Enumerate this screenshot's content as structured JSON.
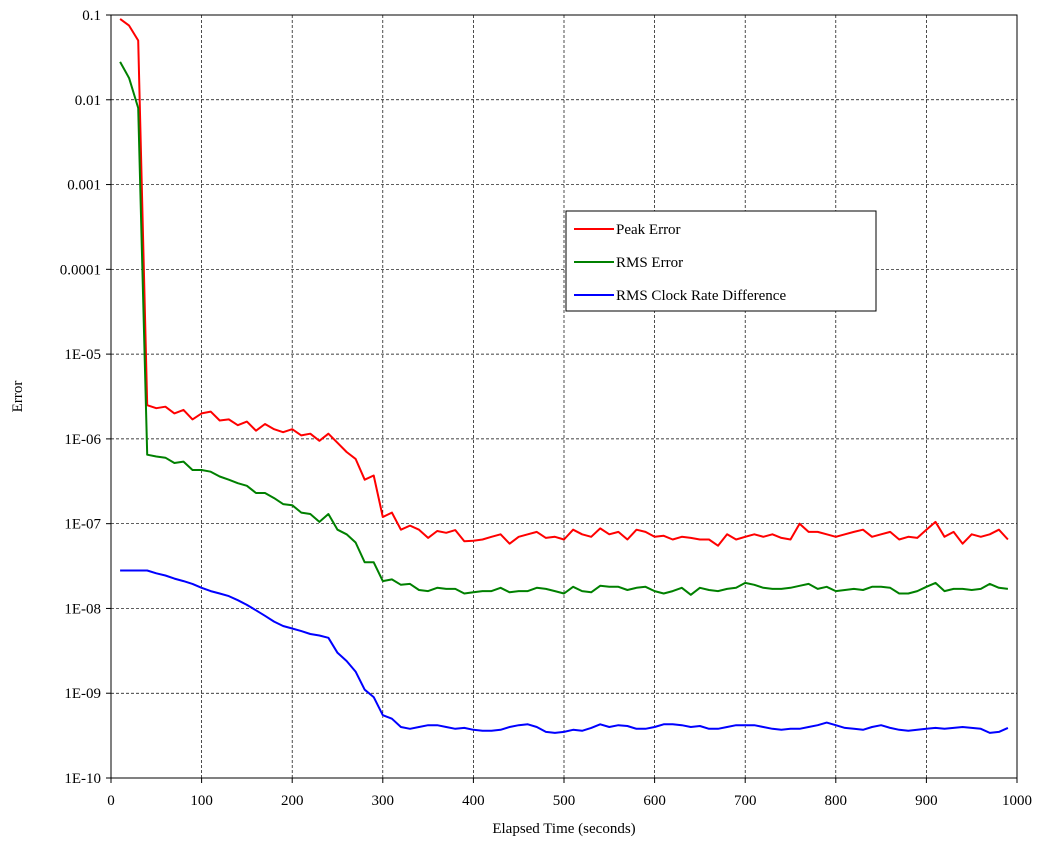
{
  "chart_data": {
    "type": "line",
    "xlabel": "Elapsed Time (seconds)",
    "ylabel": "Error",
    "y_scale": "log",
    "xlim": [
      0,
      1000
    ],
    "ylim": [
      1e-10,
      0.1
    ],
    "x_ticks": [
      "0",
      "100",
      "200",
      "300",
      "400",
      "500",
      "600",
      "700",
      "800",
      "900",
      "1000"
    ],
    "y_ticks": [
      "0.1",
      "0.01",
      "0.001",
      "0.0001",
      "1E-05",
      "1E-06",
      "1E-07",
      "1E-08",
      "1E-09",
      "1E-10"
    ],
    "grid": true,
    "legend_position": "right-upper",
    "x": [
      10,
      20,
      30,
      40,
      50,
      60,
      70,
      80,
      90,
      100,
      110,
      120,
      130,
      140,
      150,
      160,
      170,
      180,
      190,
      200,
      210,
      220,
      230,
      240,
      250,
      260,
      270,
      280,
      290,
      300,
      310,
      320,
      330,
      340,
      350,
      360,
      370,
      380,
      390,
      400,
      410,
      420,
      430,
      440,
      450,
      460,
      470,
      480,
      490,
      500,
      510,
      520,
      530,
      540,
      550,
      560,
      570,
      580,
      590,
      600,
      610,
      620,
      630,
      640,
      650,
      660,
      670,
      680,
      690,
      700,
      710,
      720,
      730,
      740,
      750,
      760,
      770,
      780,
      790,
      800,
      810,
      820,
      830,
      840,
      850,
      860,
      870,
      880,
      890,
      900,
      910,
      920,
      930,
      940,
      950,
      960,
      970,
      980,
      990
    ],
    "series": [
      {
        "name": "Peak Error",
        "color": "#ff0000",
        "values": [
          0.09,
          0.075,
          0.05,
          2.5e-06,
          2.3e-06,
          2.4e-06,
          2e-06,
          2.2e-06,
          1.7e-06,
          2e-06,
          2.1e-06,
          1.65e-06,
          1.7e-06,
          1.45e-06,
          1.6e-06,
          1.25e-06,
          1.5e-06,
          1.3e-06,
          1.2e-06,
          1.3e-06,
          1.1e-06,
          1.15e-06,
          9.5e-07,
          1.15e-06,
          9e-07,
          7e-07,
          5.8e-07,
          3.3e-07,
          3.7e-07,
          1.2e-07,
          1.35e-07,
          8.5e-08,
          9.5e-08,
          8.5e-08,
          6.8e-08,
          8.2e-08,
          7.8e-08,
          8.4e-08,
          6.2e-08,
          6.3e-08,
          6.5e-08,
          7e-08,
          7.5e-08,
          5.8e-08,
          7e-08,
          7.5e-08,
          8e-08,
          6.8e-08,
          7e-08,
          6.5e-08,
          8.5e-08,
          7.5e-08,
          7e-08,
          8.8e-08,
          7.5e-08,
          8e-08,
          6.5e-08,
          8.5e-08,
          8e-08,
          7e-08,
          7.2e-08,
          6.5e-08,
          7e-08,
          6.8e-08,
          6.5e-08,
          6.5e-08,
          5.5e-08,
          7.5e-08,
          6.5e-08,
          7e-08,
          7.5e-08,
          7e-08,
          7.5e-08,
          6.8e-08,
          6.5e-08,
          1e-07,
          8e-08,
          8e-08,
          7.5e-08,
          7e-08,
          7.5e-08,
          8e-08,
          8.5e-08,
          7e-08,
          7.5e-08,
          8e-08,
          6.5e-08,
          7e-08,
          6.8e-08,
          8.5e-08,
          1.05e-07,
          7e-08,
          8e-08,
          5.8e-08,
          7.5e-08,
          7e-08,
          7.5e-08,
          8.5e-08,
          6.5e-08
        ]
      },
      {
        "name": "RMS Error",
        "color": "#008000",
        "values": [
          0.028,
          0.018,
          0.008,
          6.5e-07,
          6.2e-07,
          6e-07,
          5.2e-07,
          5.4e-07,
          4.3e-07,
          4.3e-07,
          4.1e-07,
          3.6e-07,
          3.3e-07,
          3e-07,
          2.8e-07,
          2.3e-07,
          2.3e-07,
          2e-07,
          1.7e-07,
          1.65e-07,
          1.35e-07,
          1.3e-07,
          1.05e-07,
          1.3e-07,
          8.5e-08,
          7.5e-08,
          6e-08,
          3.5e-08,
          3.5e-08,
          2.1e-08,
          2.2e-08,
          1.9e-08,
          1.95e-08,
          1.65e-08,
          1.6e-08,
          1.75e-08,
          1.7e-08,
          1.7e-08,
          1.5e-08,
          1.55e-08,
          1.6e-08,
          1.6e-08,
          1.75e-08,
          1.55e-08,
          1.6e-08,
          1.6e-08,
          1.75e-08,
          1.7e-08,
          1.6e-08,
          1.5e-08,
          1.8e-08,
          1.6e-08,
          1.55e-08,
          1.85e-08,
          1.8e-08,
          1.8e-08,
          1.65e-08,
          1.75e-08,
          1.8e-08,
          1.6e-08,
          1.5e-08,
          1.6e-08,
          1.75e-08,
          1.45e-08,
          1.75e-08,
          1.65e-08,
          1.6e-08,
          1.7e-08,
          1.75e-08,
          2e-08,
          1.9e-08,
          1.75e-08,
          1.7e-08,
          1.7e-08,
          1.75e-08,
          1.85e-08,
          1.95e-08,
          1.7e-08,
          1.8e-08,
          1.6e-08,
          1.65e-08,
          1.7e-08,
          1.65e-08,
          1.8e-08,
          1.8e-08,
          1.75e-08,
          1.5e-08,
          1.5e-08,
          1.6e-08,
          1.8e-08,
          2e-08,
          1.6e-08,
          1.7e-08,
          1.7e-08,
          1.65e-08,
          1.7e-08,
          1.95e-08,
          1.75e-08,
          1.7e-08
        ]
      },
      {
        "name": "RMS Clock Rate Difference",
        "color": "#0000ff",
        "values": [
          2.8e-08,
          2.8e-08,
          2.8e-08,
          2.8e-08,
          2.6e-08,
          2.45e-08,
          2.25e-08,
          2.1e-08,
          1.95e-08,
          1.75e-08,
          1.6e-08,
          1.5e-08,
          1.4e-08,
          1.25e-08,
          1.1e-08,
          9.5e-09,
          8.2e-09,
          7e-09,
          6.2e-09,
          5.8e-09,
          5.4e-09,
          5e-09,
          4.8e-09,
          4.5e-09,
          3e-09,
          2.4e-09,
          1.8e-09,
          1.1e-09,
          9e-10,
          5.5e-10,
          5e-10,
          4e-10,
          3.8e-10,
          4e-10,
          4.2e-10,
          4.2e-10,
          4e-10,
          3.8e-10,
          3.9e-10,
          3.7e-10,
          3.6e-10,
          3.6e-10,
          3.7e-10,
          4e-10,
          4.2e-10,
          4.3e-10,
          4e-10,
          3.5e-10,
          3.4e-10,
          3.5e-10,
          3.7e-10,
          3.6e-10,
          3.9e-10,
          4.3e-10,
          4e-10,
          4.2e-10,
          4.1e-10,
          3.8e-10,
          3.8e-10,
          4e-10,
          4.3e-10,
          4.3e-10,
          4.2e-10,
          4e-10,
          4.1e-10,
          3.8e-10,
          3.8e-10,
          4e-10,
          4.2e-10,
          4.2e-10,
          4.2e-10,
          4e-10,
          3.8e-10,
          3.7e-10,
          3.8e-10,
          3.8e-10,
          4e-10,
          4.2e-10,
          4.5e-10,
          4.2e-10,
          3.9e-10,
          3.8e-10,
          3.7e-10,
          4e-10,
          4.2e-10,
          3.9e-10,
          3.7e-10,
          3.6e-10,
          3.7e-10,
          3.8e-10,
          3.9e-10,
          3.8e-10,
          3.9e-10,
          4e-10,
          3.9e-10,
          3.8e-10,
          3.4e-10,
          3.5e-10,
          3.9e-10
        ]
      }
    ]
  }
}
